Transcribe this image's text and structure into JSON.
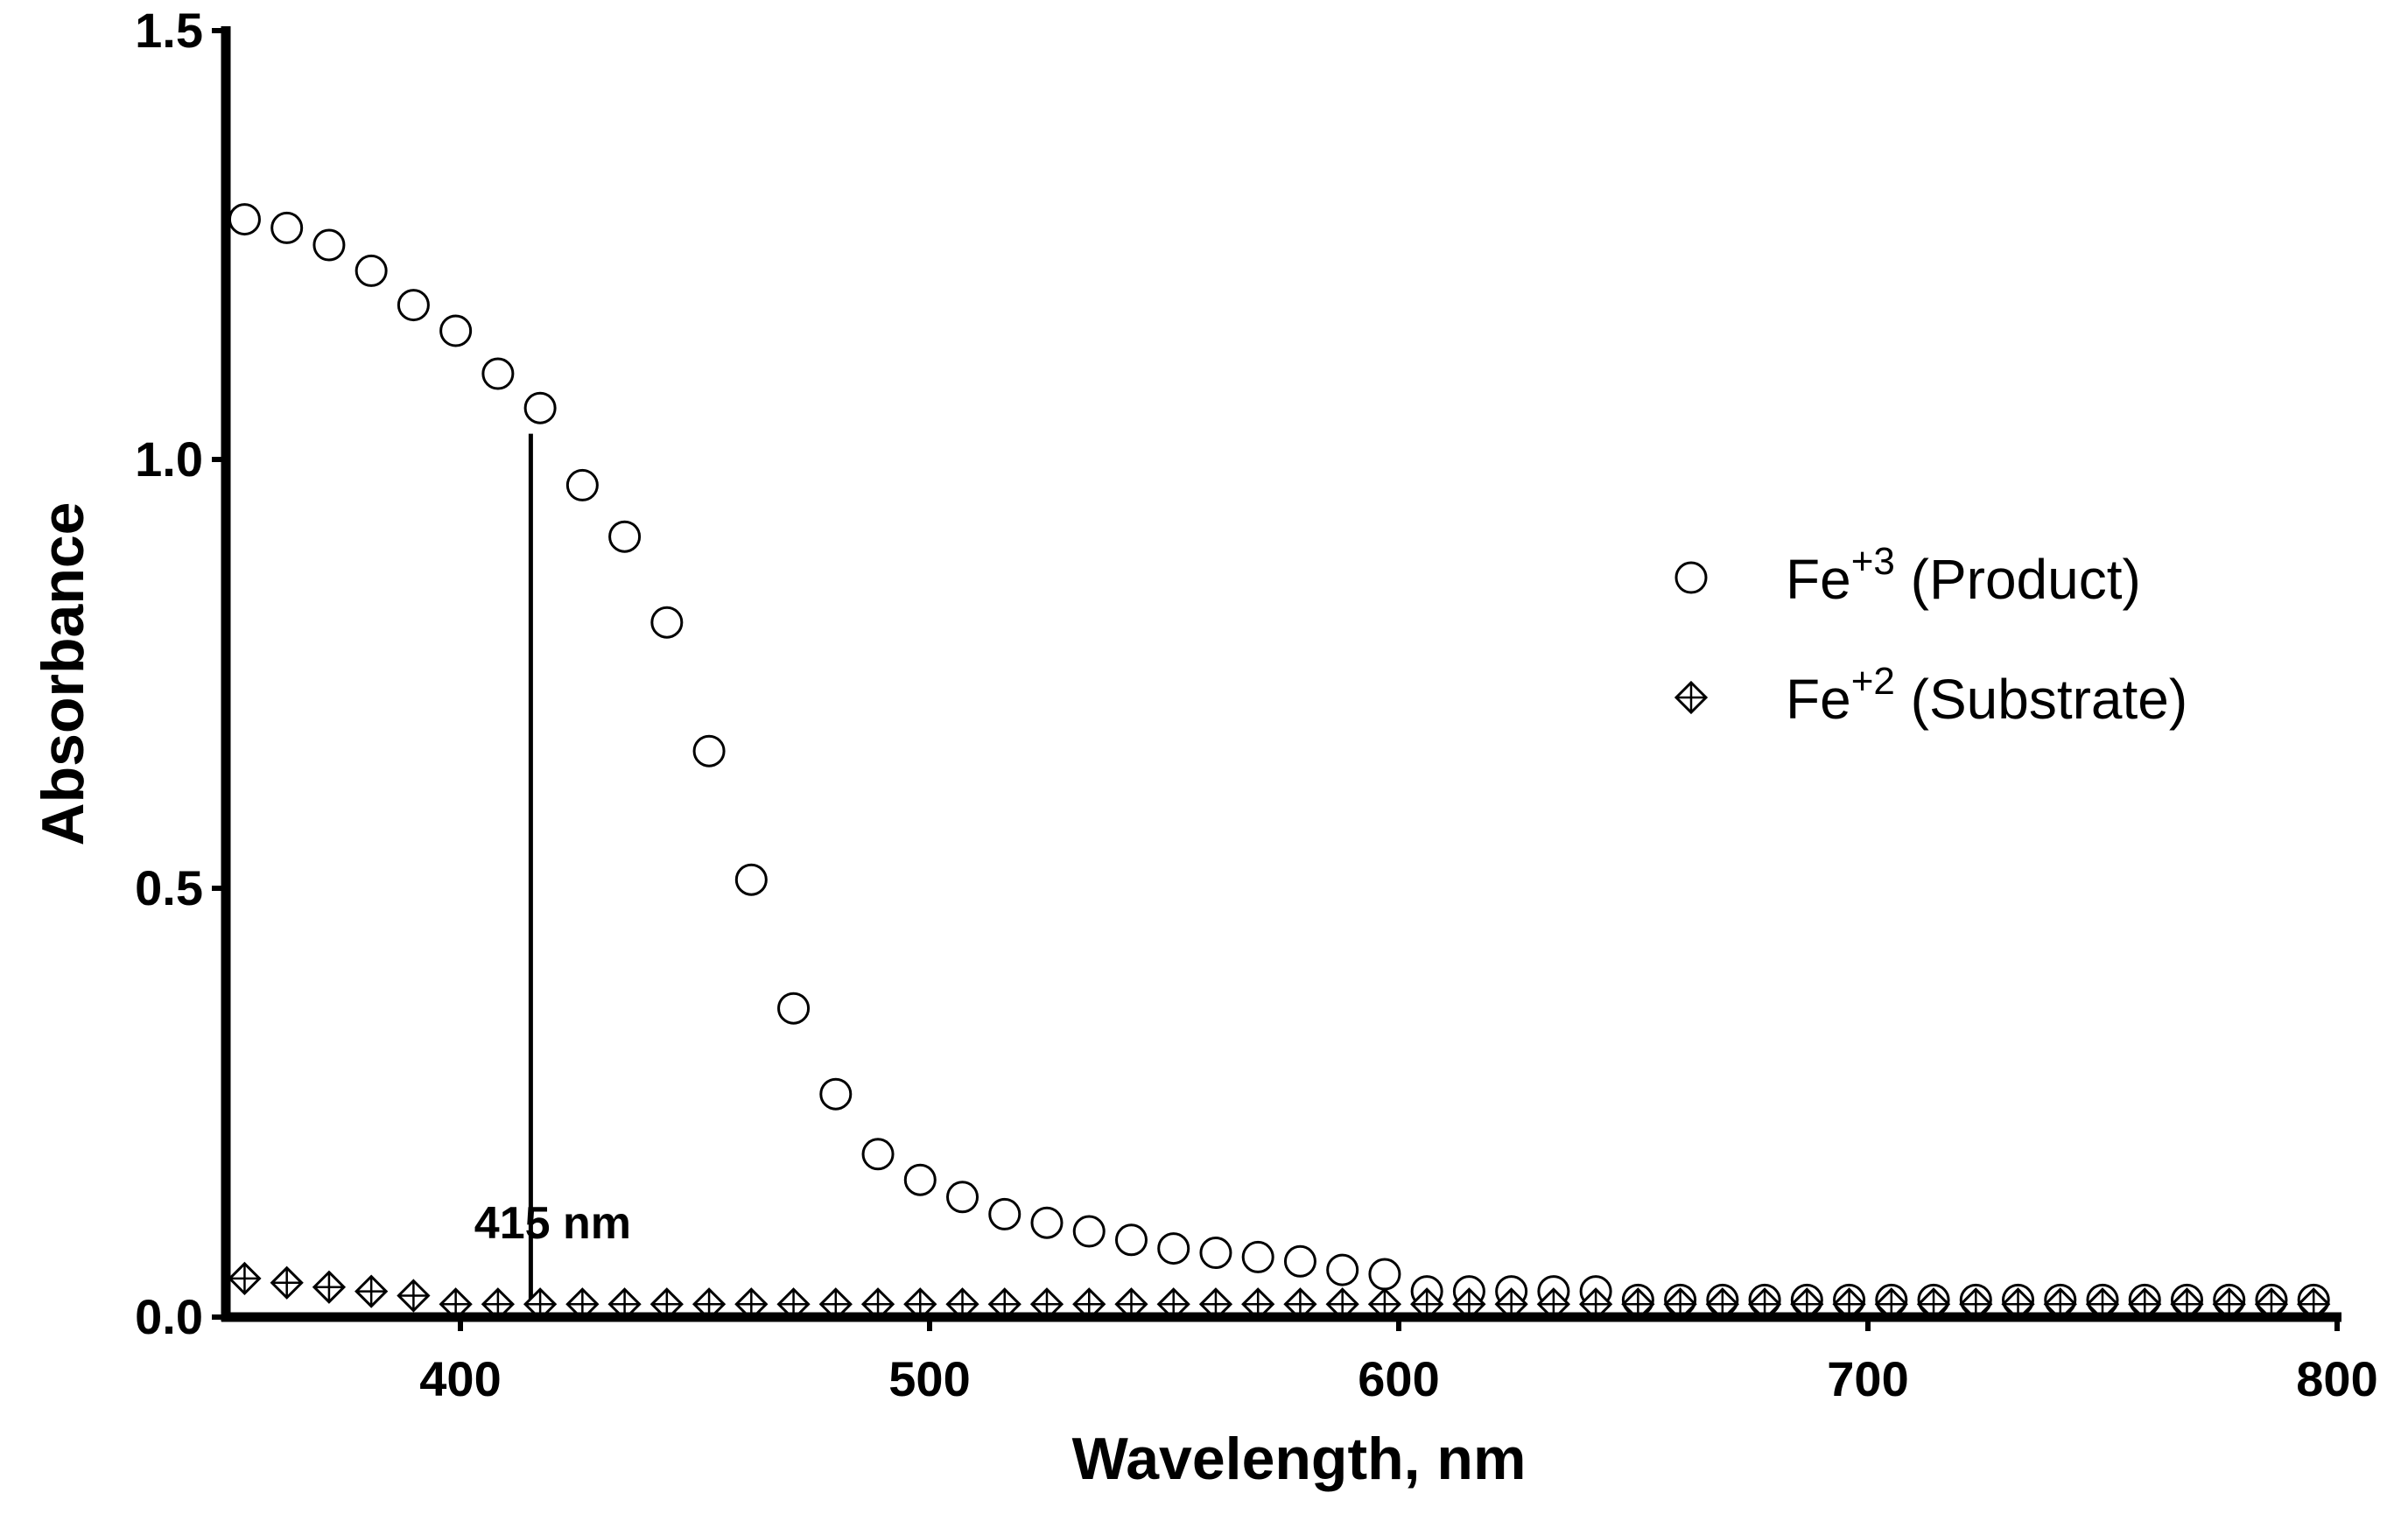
{
  "chart_data": {
    "type": "scatter",
    "title": "",
    "xlabel": "Wavelength, nm",
    "ylabel": "Absorbance",
    "xlim": [
      350,
      800
    ],
    "ylim": [
      0.0,
      1.5
    ],
    "x_ticks": [
      400,
      500,
      600,
      700,
      800
    ],
    "x_tick_labels": [
      "400",
      "500",
      "600",
      "700",
      "800"
    ],
    "y_ticks": [
      0.0,
      0.5,
      1.0,
      1.5
    ],
    "y_tick_labels": [
      "0.0",
      "0.5",
      "1.0",
      "1.5"
    ],
    "grid": false,
    "legend_position": "right",
    "annotation": {
      "label": "415 nm",
      "x": 415,
      "y_from": 0.0,
      "y_to": 1.03
    },
    "series": [
      {
        "name_main": "Fe",
        "name_sup": "+3",
        "name_rest": " (Product)",
        "marker": "open-circle",
        "color": "#000000",
        "x": [
          354,
          363,
          372,
          381,
          390,
          399,
          408,
          417,
          426,
          435,
          444,
          453,
          462,
          471,
          480,
          489,
          498,
          507,
          516,
          525,
          534,
          543,
          552,
          561,
          570,
          579,
          588,
          597,
          606,
          615,
          624,
          633,
          642,
          651,
          660,
          669,
          678,
          687,
          696,
          705,
          714,
          723,
          732,
          741,
          750,
          759,
          768,
          777,
          786,
          795
        ],
        "y": [
          1.28,
          1.27,
          1.25,
          1.22,
          1.18,
          1.15,
          1.1,
          1.06,
          0.97,
          0.91,
          0.81,
          0.66,
          0.51,
          0.36,
          0.26,
          0.19,
          0.16,
          0.14,
          0.12,
          0.11,
          0.1,
          0.09,
          0.08,
          0.075,
          0.07,
          0.065,
          0.055,
          0.05,
          0.03,
          0.03,
          0.03,
          0.03,
          0.03,
          0.02,
          0.02,
          0.02,
          0.02,
          0.02,
          0.02,
          0.02,
          0.02,
          0.02,
          0.02,
          0.02,
          0.02,
          0.02,
          0.02,
          0.02,
          0.02,
          0.02
        ]
      },
      {
        "name_main": "Fe",
        "name_sup": "+2",
        "name_rest": " (Substrate)",
        "marker": "crossed-diamond",
        "color": "#000000",
        "x": [
          354,
          363,
          372,
          381,
          390,
          399,
          408,
          417,
          426,
          435,
          444,
          453,
          462,
          471,
          480,
          489,
          498,
          507,
          516,
          525,
          534,
          543,
          552,
          561,
          570,
          579,
          588,
          597,
          606,
          615,
          624,
          633,
          642,
          651,
          660,
          669,
          678,
          687,
          696,
          705,
          714,
          723,
          732,
          741,
          750,
          759,
          768,
          777,
          786,
          795
        ],
        "y": [
          0.045,
          0.04,
          0.035,
          0.03,
          0.025,
          0.015,
          0.015,
          0.015,
          0.015,
          0.015,
          0.015,
          0.015,
          0.015,
          0.015,
          0.015,
          0.015,
          0.015,
          0.015,
          0.015,
          0.015,
          0.015,
          0.015,
          0.015,
          0.015,
          0.015,
          0.015,
          0.015,
          0.015,
          0.015,
          0.015,
          0.015,
          0.015,
          0.015,
          0.015,
          0.015,
          0.015,
          0.015,
          0.015,
          0.015,
          0.015,
          0.015,
          0.015,
          0.015,
          0.015,
          0.015,
          0.015,
          0.015,
          0.015,
          0.015,
          0.015
        ]
      }
    ]
  }
}
